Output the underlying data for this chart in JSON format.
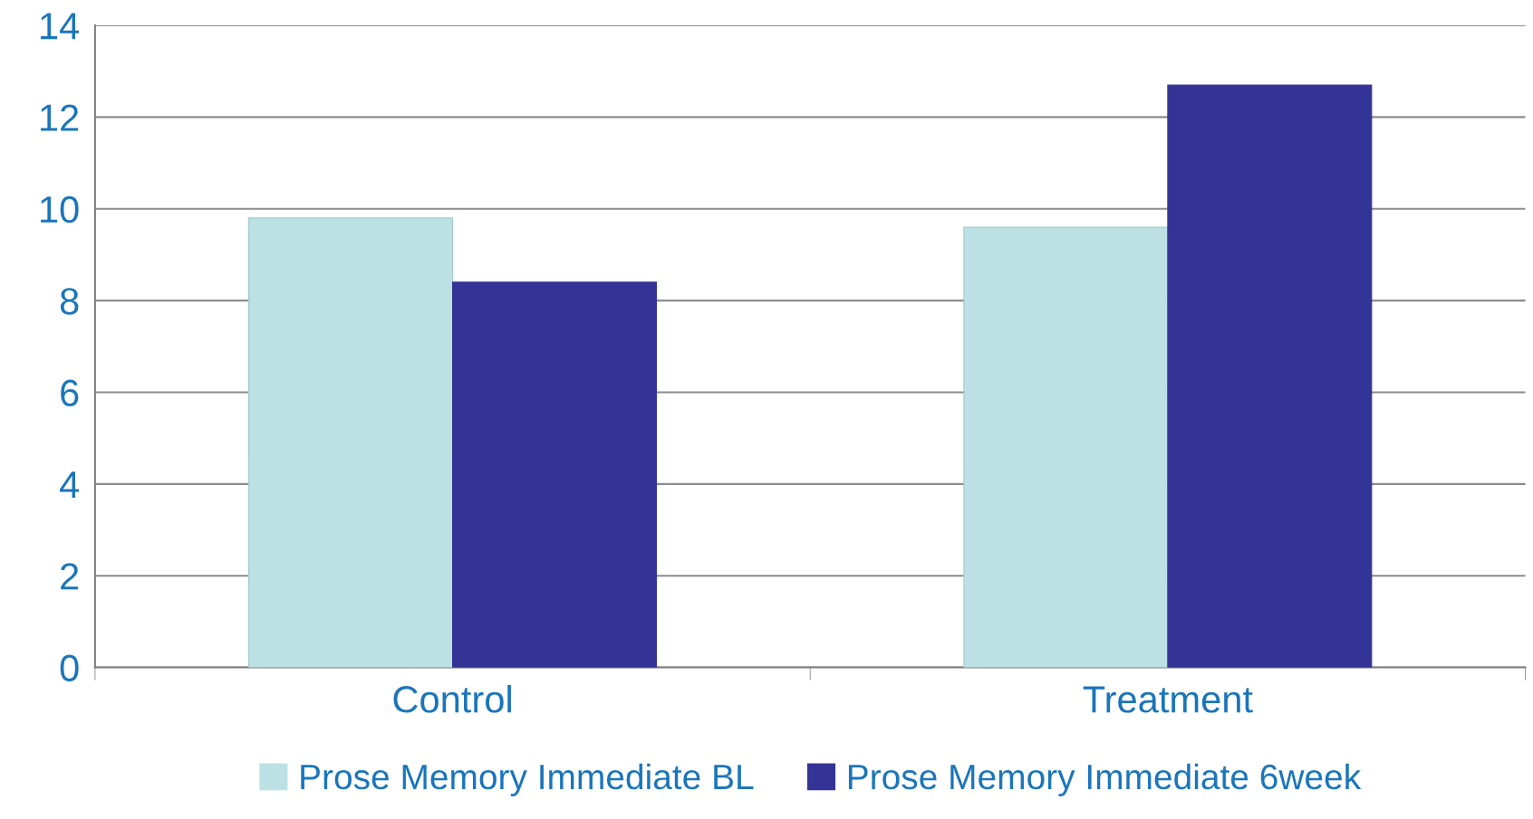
{
  "chart_data": {
    "type": "bar",
    "categories": [
      "Control",
      "Treatment"
    ],
    "series": [
      {
        "name": "Prose Memory Immediate BL",
        "color": "#bce0e3",
        "values": [
          9.8,
          9.6
        ]
      },
      {
        "name": "Prose Memory Immediate 6week",
        "color": "#343496",
        "values": [
          8.4,
          12.7
        ]
      }
    ],
    "ylim": [
      0,
      14
    ],
    "yticks": [
      0,
      2,
      4,
      6,
      8,
      10,
      12,
      14
    ],
    "grid": "y",
    "legend": "bottom"
  }
}
